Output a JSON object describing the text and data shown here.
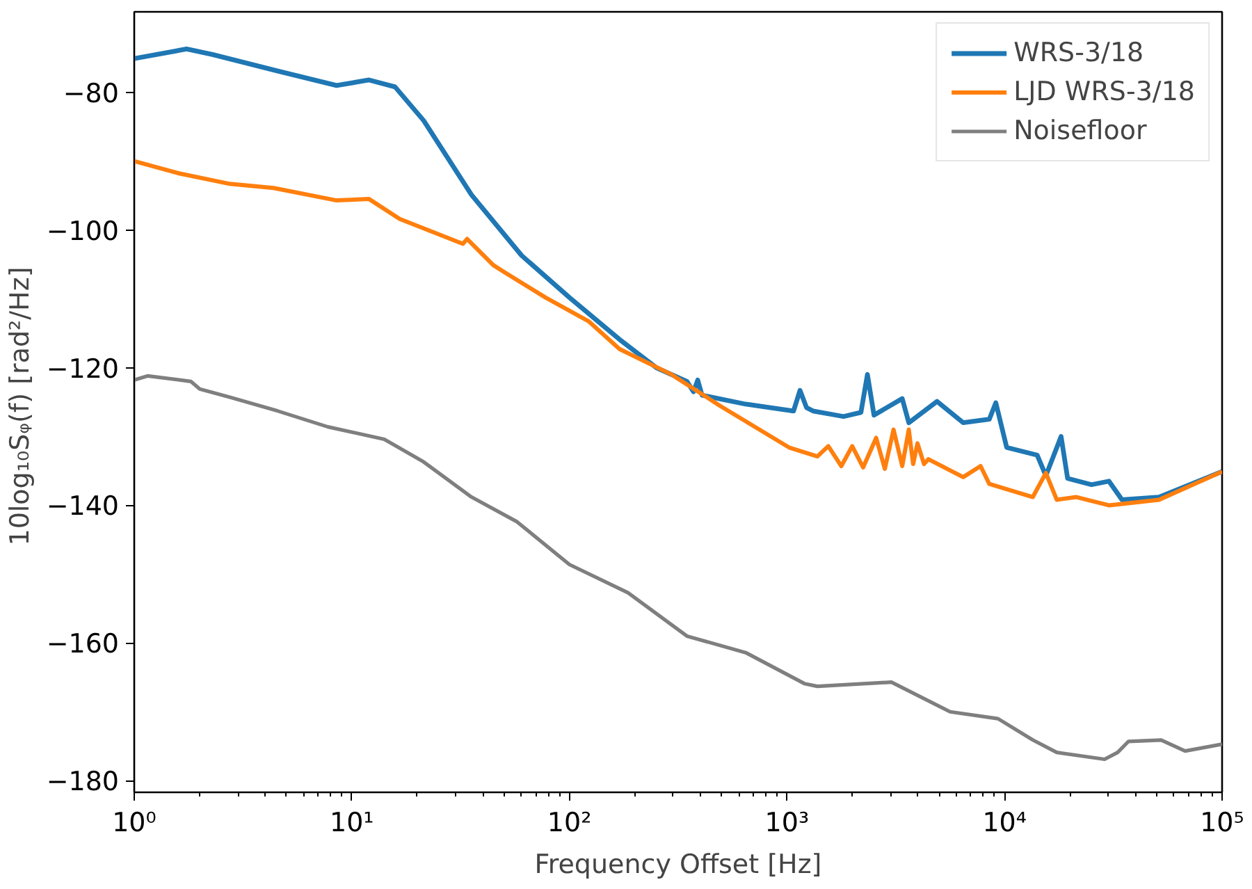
{
  "chart_data": {
    "type": "line",
    "xlabel": "Frequency Offset [Hz]",
    "ylabel": "10log₁₀Sᵩ(f)  [rad²/Hz]",
    "log": "x",
    "grid": false,
    "legend": "top right",
    "xlim": [
      1,
      100000
    ],
    "ylim": [
      -181.7,
      -68.3
    ],
    "xticks": [
      {
        "value": 1,
        "label": "10⁰"
      },
      {
        "value": 10,
        "label": "10¹"
      },
      {
        "value": 100,
        "label": "10²"
      },
      {
        "value": 1000,
        "label": "10³"
      },
      {
        "value": 10000,
        "label": "10⁴"
      },
      {
        "value": 100000,
        "label": "10⁵"
      }
    ],
    "yticks": [
      -180,
      -160,
      -140,
      -120,
      -100,
      -80
    ],
    "series": [
      {
        "name": "WRS-3/18",
        "color": "#1f77b4",
        "x": [
          1,
          1.74,
          2.29,
          4.57,
          8.51,
          12.0,
          15.8,
          21.4,
          35.5,
          60.3,
          100,
          170,
          251,
          347,
          372,
          389,
          407,
          646,
          1072,
          1148,
          1230,
          1318,
          1820,
          2188,
          2344,
          2512,
          3388,
          3631,
          4898,
          6457,
          8511,
          9120,
          10233,
          14125,
          15488,
          18197,
          19498,
          25119,
          30200,
          34674,
          51286,
          100000
        ],
        "values": [
          -75.1,
          -73.7,
          -74.5,
          -76.9,
          -79.0,
          -78.2,
          -79.2,
          -84.1,
          -94.9,
          -103.7,
          -109.8,
          -115.9,
          -120.0,
          -122.0,
          -123.5,
          -121.8,
          -124.0,
          -125.3,
          -126.3,
          -123.3,
          -125.8,
          -126.3,
          -127.1,
          -126.5,
          -121.0,
          -126.9,
          -124.5,
          -128.0,
          -124.9,
          -128.0,
          -127.5,
          -125.1,
          -131.6,
          -132.7,
          -135.7,
          -130.0,
          -136.1,
          -137.0,
          -136.5,
          -139.2,
          -138.8,
          -135.1
        ]
      },
      {
        "name": "LJD WRS-3/18",
        "color": "#ff7f0e",
        "x": [
          1,
          1.62,
          2.75,
          4.37,
          8.51,
          12.0,
          16.6,
          32.4,
          33.9,
          44.7,
          50.1,
          77.6,
          123,
          170,
          295,
          490,
          1023,
          1380,
          1549,
          1778,
          1995,
          2239,
          2570,
          2818,
          3090,
          3388,
          3631,
          3802,
          3981,
          4266,
          4467,
          6457,
          7762,
          8511,
          13490,
          15488,
          17378,
          21380,
          30200,
          51286,
          100000
        ],
        "values": [
          -90.0,
          -91.8,
          -93.3,
          -93.9,
          -95.7,
          -95.5,
          -98.4,
          -102.0,
          -101.3,
          -105.1,
          -106.1,
          -109.8,
          -113.3,
          -117.3,
          -121.0,
          -125.5,
          -131.6,
          -132.9,
          -131.4,
          -134.3,
          -131.4,
          -134.5,
          -130.2,
          -134.7,
          -129.0,
          -134.3,
          -129.0,
          -134.0,
          -131.0,
          -134.0,
          -133.3,
          -135.9,
          -134.3,
          -136.9,
          -138.8,
          -135.3,
          -139.2,
          -138.8,
          -140.0,
          -139.2,
          -135.1
        ]
      },
      {
        "name": "Noisefloor",
        "color": "#7f7f7f",
        "x": [
          1,
          1.15,
          1.82,
          2.0,
          2.75,
          4.57,
          7.76,
          14.1,
          21.4,
          35.5,
          57.5,
          100,
          186,
          347,
          646,
          1202,
          1380,
          3020,
          5623,
          9333,
          13490,
          17378,
          28840,
          33113,
          37154,
          52481,
          67608,
          100000
        ],
        "values": [
          -121.8,
          -121.2,
          -122.0,
          -123.1,
          -124.3,
          -126.3,
          -128.6,
          -130.4,
          -133.7,
          -138.8,
          -142.4,
          -148.6,
          -152.7,
          -159.0,
          -161.4,
          -165.9,
          -166.3,
          -165.7,
          -170.0,
          -171.0,
          -174.1,
          -175.9,
          -176.9,
          -175.9,
          -174.3,
          -174.1,
          -175.7,
          -174.7
        ]
      }
    ]
  }
}
